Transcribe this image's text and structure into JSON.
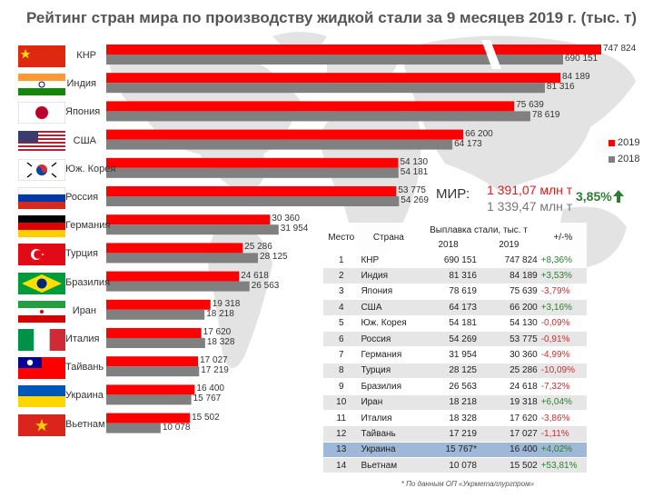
{
  "title": "Рейтинг стран мира по производству жидкой стали за 9 месяцев 2019 г. (тыс. т)",
  "colors": {
    "s2019": "#ff0000",
    "s2018": "#808080",
    "up": "#2e7d32",
    "down": "#d32f2f",
    "highlight": "#9fb8d8"
  },
  "chart_data": {
    "type": "bar",
    "orientation": "horizontal",
    "categories": [
      "КНР",
      "Индия",
      "Япония",
      "США",
      "Юж. Корея",
      "Россия",
      "Германия",
      "Турция",
      "Бразилия",
      "Иран",
      "Италия",
      "Тайвань",
      "Украина",
      "Вьетнам"
    ],
    "series": [
      {
        "name": "2019",
        "values": [
          747824,
          84189,
          75639,
          66200,
          54130,
          53775,
          30360,
          25286,
          24618,
          19318,
          17620,
          17027,
          16400,
          15502
        ]
      },
      {
        "name": "2018",
        "values": [
          690151,
          81316,
          78619,
          64173,
          54181,
          54269,
          31954,
          28125,
          26563,
          18218,
          18328,
          17219,
          15767,
          10078
        ]
      }
    ],
    "value_labels_2019": [
      "747 824",
      "84 189",
      "75 639",
      "66 200",
      "54 130",
      "53 775",
      "30 360",
      "25 286",
      "24 618",
      "19 318",
      "17 620",
      "17 027",
      "16 400",
      "15 502"
    ],
    "value_labels_2018": [
      "690 151",
      "81 316",
      "78 619",
      "64 173",
      "54 181",
      "54 269",
      "31 954",
      "28 125",
      "26 563",
      "18 218",
      "18 328",
      "17 219",
      "15 767",
      "10 078"
    ],
    "axis_break": "КНР bars are truncated by an axis break",
    "legend": {
      "position": "right",
      "items": [
        "2019",
        "2018"
      ]
    },
    "flags": [
      "china-flag-icon",
      "india-flag-icon",
      "japan-flag-icon",
      "usa-flag-icon",
      "south-korea-flag-icon",
      "russia-flag-icon",
      "germany-flag-icon",
      "turkey-flag-icon",
      "brazil-flag-icon",
      "iran-flag-icon",
      "italy-flag-icon",
      "taiwan-flag-icon",
      "ukraine-flag-icon",
      "vietnam-flag-icon"
    ]
  },
  "world": {
    "label": "МИР:",
    "v2019": "1 391,07 млн т",
    "v2018": "1 339,47 млн т",
    "change": "3,85%"
  },
  "table": {
    "headers": {
      "rank": "Место",
      "country": "Страна",
      "group": "Выплавка стали, тыс. т",
      "y2018": "2018",
      "y2019": "2019",
      "change": "+/-%"
    },
    "rows": [
      {
        "rank": "1",
        "country": "КНР",
        "v2018": "690 151",
        "v2019": "747 824",
        "change": "+8,36%"
      },
      {
        "rank": "2",
        "country": "Индия",
        "v2018": "81 316",
        "v2019": "84 189",
        "change": "+3,53%"
      },
      {
        "rank": "3",
        "country": "Япония",
        "v2018": "78 619",
        "v2019": "75 639",
        "change": "-3,79%"
      },
      {
        "rank": "4",
        "country": "США",
        "v2018": "64 173",
        "v2019": "66 200",
        "change": "+3,16%"
      },
      {
        "rank": "5",
        "country": "Юж. Корея",
        "v2018": "54 181",
        "v2019": "54 130",
        "change": "-0,09%"
      },
      {
        "rank": "6",
        "country": "Россия",
        "v2018": "54 269",
        "v2019": "53 775",
        "change": "-0,91%"
      },
      {
        "rank": "7",
        "country": "Германия",
        "v2018": "31 954",
        "v2019": "30 360",
        "change": "-4,99%"
      },
      {
        "rank": "8",
        "country": "Турция",
        "v2018": "28 125",
        "v2019": "25 286",
        "change": "-10,09%"
      },
      {
        "rank": "9",
        "country": "Бразилия",
        "v2018": "26 563",
        "v2019": "24 618",
        "change": "-7,32%"
      },
      {
        "rank": "10",
        "country": "Иран",
        "v2018": "18 218",
        "v2019": "19 318",
        "change": "+6,04%"
      },
      {
        "rank": "11",
        "country": "Италия",
        "v2018": "18 328",
        "v2019": "17 620",
        "change": "-3,86%"
      },
      {
        "rank": "12",
        "country": "Тайвань",
        "v2018": "17 219",
        "v2019": "17 027",
        "change": "-1,11%"
      },
      {
        "rank": "13",
        "country": "Украина",
        "v2018": "15 767*",
        "v2019": "16 400",
        "change": "+4,02%",
        "highlight": true
      },
      {
        "rank": "14",
        "country": "Вьетнам",
        "v2018": "10 078",
        "v2019": "15 502",
        "change": "+53,81%"
      }
    ]
  },
  "footnote": "* По данным ОП «Укрметаллургпром»"
}
